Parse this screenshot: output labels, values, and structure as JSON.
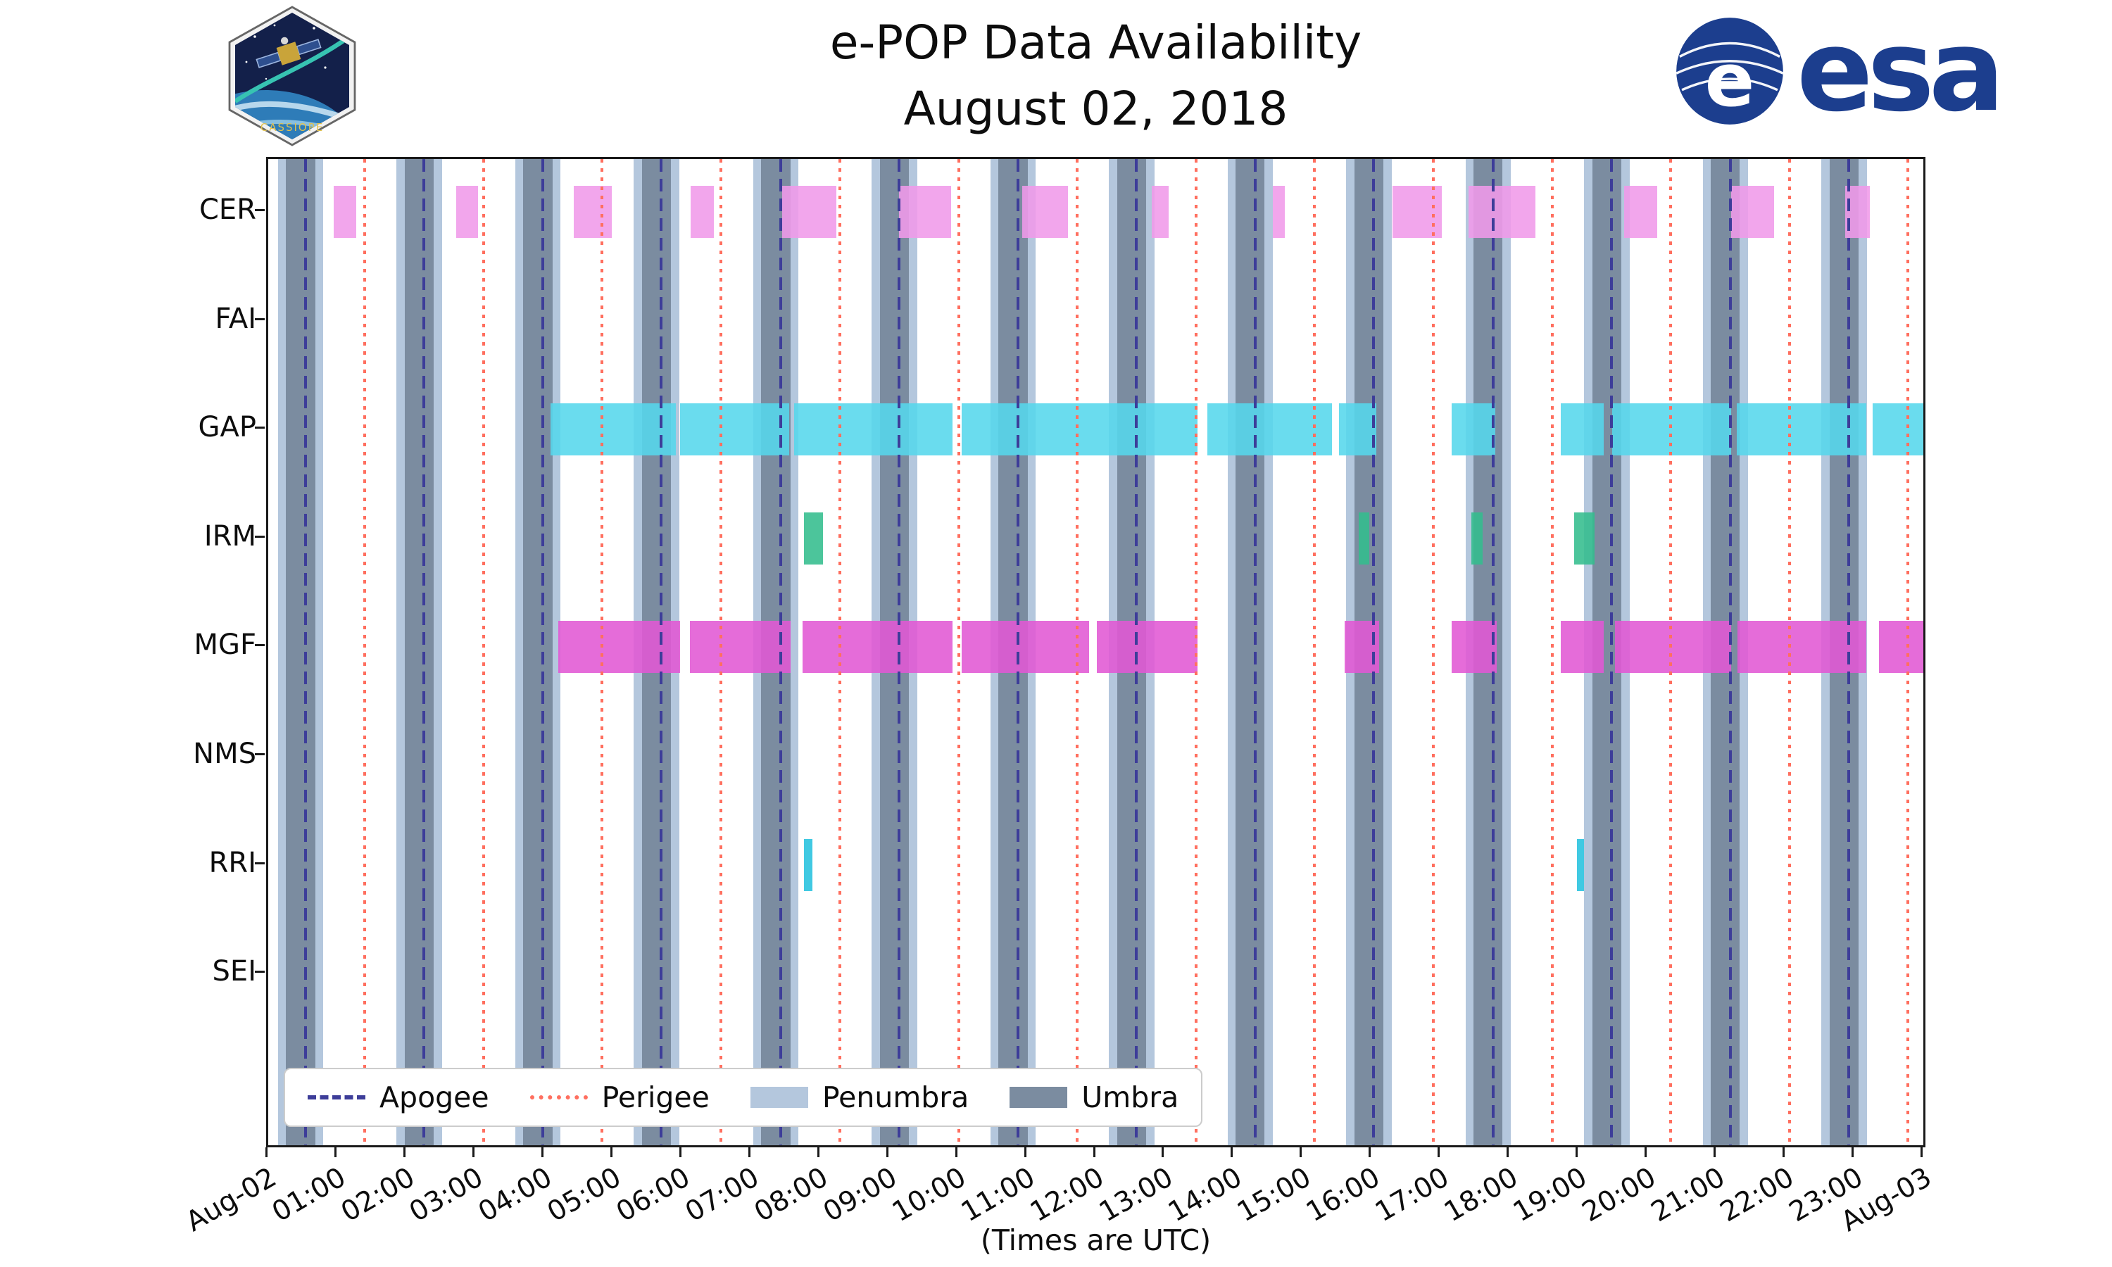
{
  "page": {
    "title_line1": "e-POP Data Availability",
    "title_line2": "August 02, 2018",
    "x_axis_label": "(Times are UTC)"
  },
  "logos": {
    "cassiope_text": "CASSIOPE",
    "esa_text": "esa"
  },
  "legend": {
    "items": [
      {
        "label": "Apogee",
        "style": "dashed",
        "color": "#3d3d99"
      },
      {
        "label": "Perigee",
        "style": "dotted",
        "color": "#ff6f5f"
      },
      {
        "label": "Penumbra",
        "style": "patch",
        "color": "#b4c7dd"
      },
      {
        "label": "Umbra",
        "style": "patch",
        "color": "#7b8ca0"
      }
    ]
  },
  "chart_data": {
    "type": "timeline",
    "title": "e-POP Data Availability",
    "subtitle": "August 02, 2018",
    "x_unit": "hours UTC on 2018-08-02",
    "x_range": [
      0,
      24
    ],
    "x_tick_hours": [
      0,
      1,
      2,
      3,
      4,
      5,
      6,
      7,
      8,
      9,
      10,
      11,
      12,
      13,
      14,
      15,
      16,
      17,
      18,
      19,
      20,
      21,
      22,
      23,
      24
    ],
    "x_tick_labels": [
      "Aug-02",
      "01:00",
      "02:00",
      "03:00",
      "04:00",
      "05:00",
      "06:00",
      "07:00",
      "08:00",
      "09:00",
      "10:00",
      "11:00",
      "12:00",
      "13:00",
      "14:00",
      "15:00",
      "16:00",
      "17:00",
      "18:00",
      "19:00",
      "20:00",
      "21:00",
      "22:00",
      "23:00",
      "Aug-03"
    ],
    "instruments": [
      "CER",
      "FAI",
      "GAP",
      "IRM",
      "MGF",
      "NMS",
      "RRI",
      "SEI"
    ],
    "series_colors": {
      "CER": "#f09ae9",
      "FAI": "#f09ae9",
      "GAP": "#55d7ec",
      "IRM": "#33bd8d",
      "MGF": "#e158d4",
      "NMS": "#e158d4",
      "RRI": "#25c2de",
      "SEI": "#25c2de"
    },
    "availability_hours": {
      "CER": [
        [
          0.95,
          1.28
        ],
        [
          2.73,
          3.04
        ],
        [
          4.43,
          4.98
        ],
        [
          6.13,
          6.46
        ],
        [
          7.45,
          8.24
        ],
        [
          9.15,
          9.9
        ],
        [
          10.93,
          11.6
        ],
        [
          12.81,
          13.06
        ],
        [
          14.57,
          14.74
        ],
        [
          16.3,
          17.02
        ],
        [
          17.41,
          18.38
        ],
        [
          19.66,
          20.14
        ],
        [
          21.21,
          21.84
        ],
        [
          22.87,
          23.22
        ]
      ],
      "FAI": [],
      "GAP": [
        [
          4.09,
          5.91
        ],
        [
          5.97,
          7.55
        ],
        [
          7.63,
          9.92
        ],
        [
          10.06,
          13.48
        ],
        [
          13.62,
          15.42
        ],
        [
          15.53,
          16.07
        ],
        [
          17.16,
          17.79
        ],
        [
          18.74,
          19.37
        ],
        [
          19.49,
          21.21
        ],
        [
          21.29,
          23.17
        ],
        [
          23.26,
          24.0
        ]
      ],
      "IRM": [
        [
          7.77,
          8.04
        ],
        [
          15.81,
          15.97
        ],
        [
          17.45,
          17.61
        ],
        [
          18.94,
          19.23
        ]
      ],
      "MGF": [
        [
          4.21,
          5.97
        ],
        [
          6.11,
          7.57
        ],
        [
          7.75,
          9.92
        ],
        [
          10.06,
          11.9
        ],
        [
          12.02,
          13.48
        ],
        [
          15.61,
          16.11
        ],
        [
          17.16,
          17.81
        ],
        [
          18.74,
          19.37
        ],
        [
          19.53,
          21.21
        ],
        [
          21.31,
          23.17
        ],
        [
          23.36,
          24.0
        ]
      ],
      "NMS": [],
      "RRI": [
        [
          7.77,
          7.89
        ],
        [
          18.98,
          19.08
        ]
      ],
      "SEI": []
    },
    "orbit_overlays": {
      "umbra_center_hours": [
        0.47,
        2.19,
        3.91,
        5.63,
        7.36,
        9.08,
        10.8,
        12.52,
        14.24,
        15.96,
        17.69,
        19.41,
        21.13,
        22.85
      ],
      "umbra_half_width_hours": 0.21,
      "penumbra_half_width_hours": 0.33,
      "apogee_hours": [
        0.54,
        2.26,
        3.98,
        5.7,
        7.43,
        9.15,
        10.87,
        12.59,
        14.31,
        16.03,
        17.76,
        19.48,
        21.2,
        22.92
      ],
      "perigee_hours": [
        1.4,
        3.12,
        4.84,
        6.56,
        8.29,
        10.01,
        11.73,
        13.45,
        15.17,
        16.89,
        18.62,
        20.34,
        22.06,
        23.78
      ],
      "umbra_color": "#7b8ca0",
      "penumbra_color": "#b4c7dd",
      "apogee_color": "#3d3d99",
      "perigee_color": "#ff6f5f"
    },
    "legend_position": "lower left inside axes",
    "grid": false
  }
}
